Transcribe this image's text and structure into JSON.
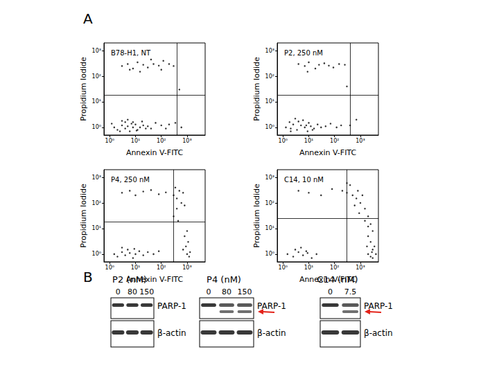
{
  "panel_labels": [
    "A",
    "B"
  ],
  "chart_data": [
    {
      "type": "scatter",
      "title": "B78-H1, NT",
      "x_label": "Annexin V-FITC",
      "y_label": "Propidium Iodide",
      "log": true,
      "grid": false,
      "color": "#000000",
      "marker": "circle",
      "xlim": [
        0.6,
        5000
      ],
      "ylim": [
        0.5,
        2000
      ],
      "xticks": [
        {
          "value": 1,
          "label": "10⁰"
        },
        {
          "value": 10,
          "label": "10¹"
        },
        {
          "value": 100,
          "label": "10²"
        },
        {
          "value": 1000,
          "label": "10³"
        }
      ],
      "yticks": [
        {
          "value": 1,
          "label": "10⁰"
        },
        {
          "value": 10,
          "label": "10¹"
        },
        {
          "value": 100,
          "label": "10²"
        },
        {
          "value": 1000,
          "label": "10³"
        }
      ],
      "gates": {
        "x": 400,
        "y": 18
      },
      "x": [
        1.5,
        2,
        3,
        4,
        5,
        6,
        8,
        10,
        12,
        15,
        20,
        25,
        3,
        5,
        8,
        2.5,
        7,
        11,
        30,
        40,
        60,
        100,
        150,
        200,
        1.2,
        4,
        18,
        3,
        5,
        8,
        12,
        20,
        30,
        50,
        80,
        120,
        200,
        300,
        15,
        40,
        6,
        100,
        350,
        600,
        500
      ],
      "values": [
        1,
        0.8,
        1.2,
        0.9,
        1.1,
        0.7,
        1,
        1.3,
        0.8,
        1,
        1.2,
        0.9,
        1.8,
        2,
        1.6,
        0.7,
        1.4,
        0.75,
        1.1,
        0.9,
        1.5,
        1.2,
        0.9,
        1.3,
        1.4,
        1.6,
        1.7,
        250,
        300,
        200,
        350,
        280,
        220,
        300,
        260,
        400,
        300,
        250,
        150,
        450,
        180,
        180,
        1.5,
        1,
        30
      ]
    },
    {
      "type": "scatter",
      "title": "P2, 250 nM",
      "x_label": "Annexin V-FITC",
      "y_label": "Propidium Iodide",
      "log": true,
      "grid": false,
      "color": "#000000",
      "marker": "circle",
      "xlim": [
        0.6,
        5000
      ],
      "ylim": [
        0.5,
        2000
      ],
      "xticks": [
        {
          "value": 1,
          "label": "10⁰"
        },
        {
          "value": 10,
          "label": "10¹"
        },
        {
          "value": 100,
          "label": "10²"
        },
        {
          "value": 1000,
          "label": "10³"
        }
      ],
      "yticks": [
        {
          "value": 1,
          "label": "10⁰"
        },
        {
          "value": 10,
          "label": "10¹"
        },
        {
          "value": 100,
          "label": "10²"
        },
        {
          "value": 1000,
          "label": "10³"
        }
      ],
      "gates": {
        "x": 400,
        "y": 18
      },
      "x": [
        1.3,
        2,
        2.5,
        3.5,
        5,
        7,
        9,
        12,
        16,
        22,
        30,
        4,
        6,
        10,
        2,
        8,
        14,
        45,
        70,
        120,
        180,
        1.8,
        3,
        4,
        7,
        10,
        18,
        25,
        40,
        60,
        90,
        150,
        250,
        9,
        400,
        700,
        300
      ],
      "values": [
        1,
        0.9,
        1.3,
        0.8,
        1.2,
        1,
        0.7,
        1.1,
        0.9,
        1.3,
        1,
        1.7,
        1.9,
        1.5,
        0.7,
        1.2,
        0.8,
        1.1,
        1.4,
        1,
        1.2,
        1.6,
        2.2,
        300,
        250,
        350,
        200,
        280,
        320,
        260,
        220,
        300,
        280,
        150,
        1.2,
        2,
        40
      ]
    },
    {
      "type": "scatter",
      "title": "P4, 250 nM",
      "x_label": "Annexin V-FITC",
      "y_label": "Propidium Iodide",
      "log": true,
      "grid": false,
      "color": "#000000",
      "marker": "circle",
      "xlim": [
        0.6,
        5000
      ],
      "ylim": [
        0.5,
        2000
      ],
      "xticks": [
        {
          "value": 1,
          "label": "10⁰"
        },
        {
          "value": 10,
          "label": "10¹"
        },
        {
          "value": 100,
          "label": "10²"
        },
        {
          "value": 1000,
          "label": "10³"
        }
      ],
      "yticks": [
        {
          "value": 1,
          "label": "10⁰"
        },
        {
          "value": 10,
          "label": "10¹"
        },
        {
          "value": 100,
          "label": "10²"
        },
        {
          "value": 1000,
          "label": "10³"
        }
      ],
      "gates": {
        "x": 300,
        "y": 18
      },
      "x": [
        1.5,
        2,
        3,
        4,
        6,
        8,
        10,
        14,
        20,
        30,
        3,
        5,
        9,
        50,
        80,
        3,
        6,
        10,
        20,
        40,
        80,
        150,
        300,
        400,
        500,
        600,
        400,
        350,
        700,
        800,
        300,
        450,
        900,
        1000,
        1200,
        800,
        1100,
        700,
        1300,
        1000
      ],
      "values": [
        1,
        0.8,
        1.2,
        0.9,
        1.1,
        0.7,
        1,
        1.3,
        0.9,
        1.2,
        1.8,
        1.5,
        1.6,
        1,
        1.3,
        250,
        300,
        200,
        280,
        320,
        220,
        260,
        200,
        150,
        300,
        100,
        60,
        400,
        250,
        80,
        30,
        20,
        2,
        1,
        0.8,
        5,
        3,
        1.5,
        1.2,
        8
      ]
    },
    {
      "type": "scatter",
      "title": "C14, 10 nM",
      "x_label": "Annexin V-FITC",
      "y_label": "Propidium Iodide",
      "log": true,
      "grid": false,
      "color": "#000000",
      "marker": "circle",
      "xlim": [
        0.6,
        5000
      ],
      "ylim": [
        0.5,
        2000
      ],
      "xticks": [
        {
          "value": 1,
          "label": "10⁰"
        },
        {
          "value": 10,
          "label": "10¹"
        },
        {
          "value": 100,
          "label": "10²"
        },
        {
          "value": 1000,
          "label": "10³"
        }
      ],
      "yticks": [
        {
          "value": 1,
          "label": "10⁰"
        },
        {
          "value": 10,
          "label": "10¹"
        },
        {
          "value": 100,
          "label": "10²"
        },
        {
          "value": 1000,
          "label": "10³"
        }
      ],
      "gates": {
        "x": 300,
        "y": 25
      },
      "x": [
        1.5,
        2.5,
        4,
        6,
        9,
        13,
        20,
        3,
        5,
        8,
        4,
        10,
        30,
        80,
        200,
        300,
        500,
        700,
        1000,
        1500,
        2000,
        2500,
        3000,
        400,
        800,
        1200,
        600,
        900,
        1500,
        2000,
        300,
        2000,
        2500,
        3000,
        3500,
        2500,
        2000,
        3000,
        1800,
        2800,
        4000
      ],
      "values": [
        1,
        0.8,
        1.2,
        0.9,
        1.1,
        0.7,
        1,
        1.5,
        1.8,
        1.3,
        300,
        250,
        200,
        350,
        300,
        250,
        200,
        150,
        100,
        60,
        30,
        15,
        8,
        500,
        300,
        200,
        80,
        40,
        20,
        12,
        600,
        1,
        0.8,
        1.5,
        2,
        3,
        5,
        0.7,
        2,
        1.2,
        1
      ]
    }
  ],
  "blot_labels": [
    "PARP-1",
    "β-actin"
  ],
  "arrow_color": "#e32219",
  "blots": [
    {
      "title": "P2 (nM)",
      "lanes": [
        "0",
        "80",
        "150"
      ],
      "cleaved": [
        false,
        false,
        false
      ],
      "arrow": false
    },
    {
      "title": "P4 (nM)",
      "lanes": [
        "0",
        "80",
        "150"
      ],
      "cleaved": [
        false,
        true,
        true
      ],
      "arrow": true
    },
    {
      "title": "C14 (nM)",
      "lanes": [
        "0",
        "7.5"
      ],
      "cleaved": [
        false,
        true
      ],
      "arrow": true
    }
  ]
}
